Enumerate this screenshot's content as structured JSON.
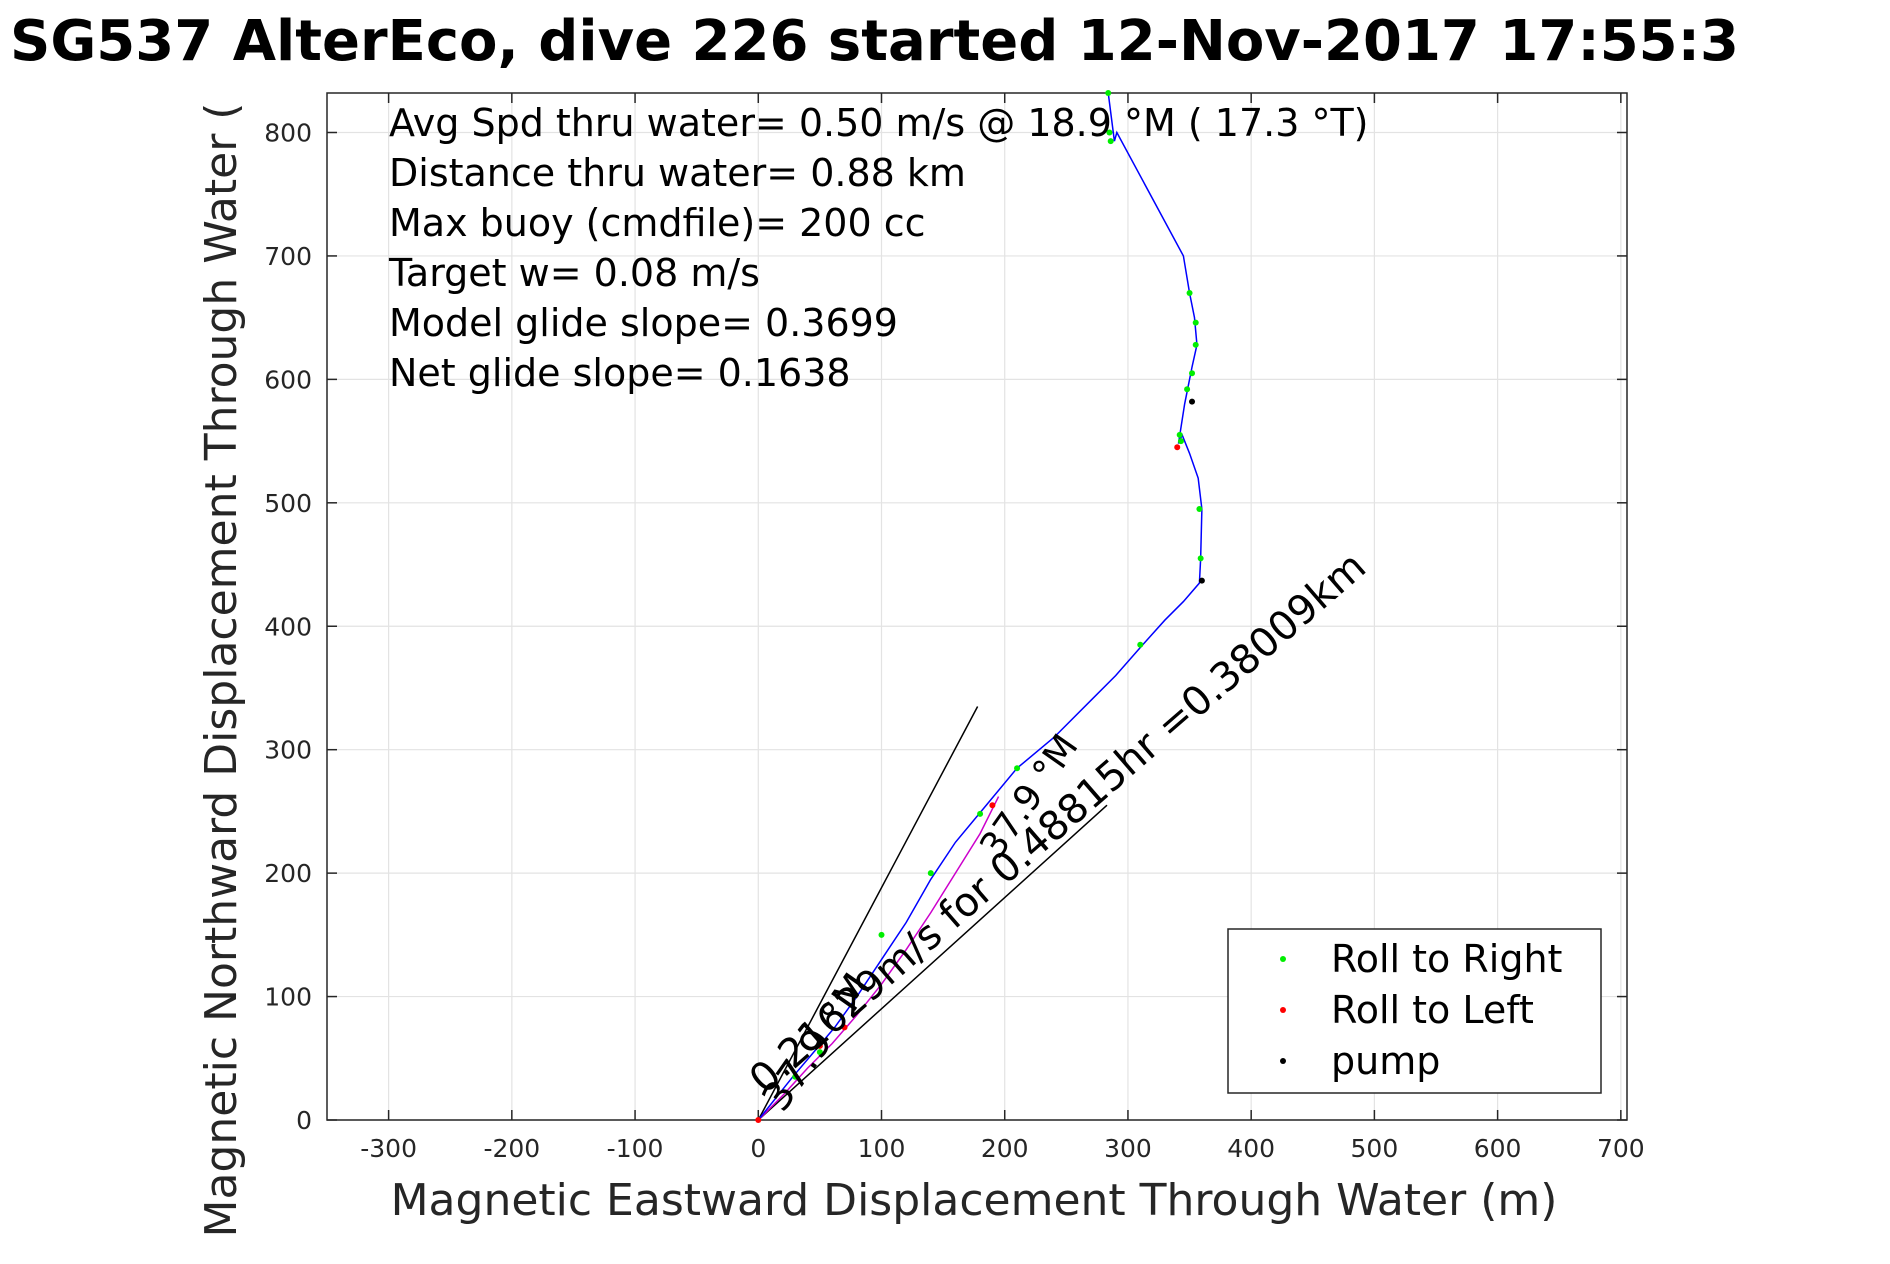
{
  "chart_data": {
    "type": "line",
    "title": "SG537 AlterEco, dive 226 started 12-Nov-2017 17:55:3",
    "xlabel": "Magnetic Eastward Displacement Through Water (m)",
    "ylabel": "Magnetic Northward Displacement Through Water (",
    "xlim": [
      -350,
      705
    ],
    "ylim": [
      0,
      832
    ],
    "xticks": [
      -300,
      -200,
      -100,
      0,
      100,
      200,
      300,
      400,
      500,
      600,
      700
    ],
    "yticks": [
      0,
      100,
      200,
      300,
      400,
      500,
      600,
      700,
      800
    ],
    "grid": true,
    "info_lines": [
      "Avg Spd thru water=  0.50 m/s @  18.9 °M ( 17.3 °T)",
      "Distance thru water=  0.88 km",
      "Max buoy (cmdfile)= 200 cc",
      "Target w= 0.08 m/s",
      "Model glide slope= 0.3699",
      "Net glide slope= 0.1638"
    ],
    "track": {
      "color": "#0000ff",
      "x": [
        0,
        12,
        28,
        45,
        62,
        80,
        100,
        120,
        140,
        160,
        185,
        210,
        240,
        270,
        290,
        312,
        330,
        345,
        358,
        359,
        360,
        357,
        350,
        344,
        341,
        346,
        349,
        352,
        356,
        354,
        350,
        345,
        291,
        289,
        284
      ],
      "y": [
        0,
        15,
        35,
        55,
        75,
        100,
        130,
        160,
        195,
        225,
        255,
        285,
        310,
        340,
        360,
        385,
        405,
        420,
        435,
        455,
        495,
        520,
        540,
        555,
        548,
        580,
        595,
        610,
        628,
        650,
        670,
        700,
        800,
        793,
        832
      ]
    },
    "heading_lines": [
      {
        "x": [
          0,
          178
        ],
        "y": [
          0,
          335
        ]
      },
      {
        "x": [
          0,
          283
        ],
        "y": [
          0,
          255
        ]
      }
    ],
    "heading_path": {
      "color": "#cc00cc",
      "x": [
        0,
        20,
        40,
        60,
        80,
        100,
        120,
        140,
        160,
        180,
        195
      ],
      "y": [
        0,
        20,
        42,
        62,
        85,
        110,
        138,
        168,
        200,
        232,
        262
      ]
    },
    "annotations": [
      {
        "text": "37.9 °M",
        "x": 20,
        "y": 5
      },
      {
        "text": "0.21629m/s for 0.48815hr =0.38009km",
        "x": 5,
        "y": 20
      },
      {
        "text": "37.9 °M",
        "x": 195,
        "y": 210
      }
    ],
    "legend": {
      "placement": "bottom-right",
      "entries": [
        {
          "label": "Roll to Right",
          "color": "#00ee00"
        },
        {
          "label": "Roll to Left",
          "color": "#ff0000"
        },
        {
          "label": "pump",
          "color": "#000000"
        }
      ]
    },
    "roll_right_points": {
      "x": [
        284,
        285,
        286,
        350,
        355,
        355,
        352,
        348,
        342,
        343,
        358,
        359,
        310,
        210,
        180,
        140,
        100,
        50,
        30
      ],
      "y": [
        832,
        800,
        793,
        670,
        646,
        628,
        605,
        592,
        555,
        550,
        495,
        455,
        385,
        285,
        248,
        200,
        150,
        55,
        35
      ]
    },
    "roll_left_points": {
      "x": [
        0,
        340,
        190,
        70,
        50
      ],
      "y": [
        0,
        545,
        255,
        75,
        60
      ]
    },
    "pump_points": {
      "x": [
        360,
        352
      ],
      "y": [
        437,
        582
      ]
    }
  }
}
